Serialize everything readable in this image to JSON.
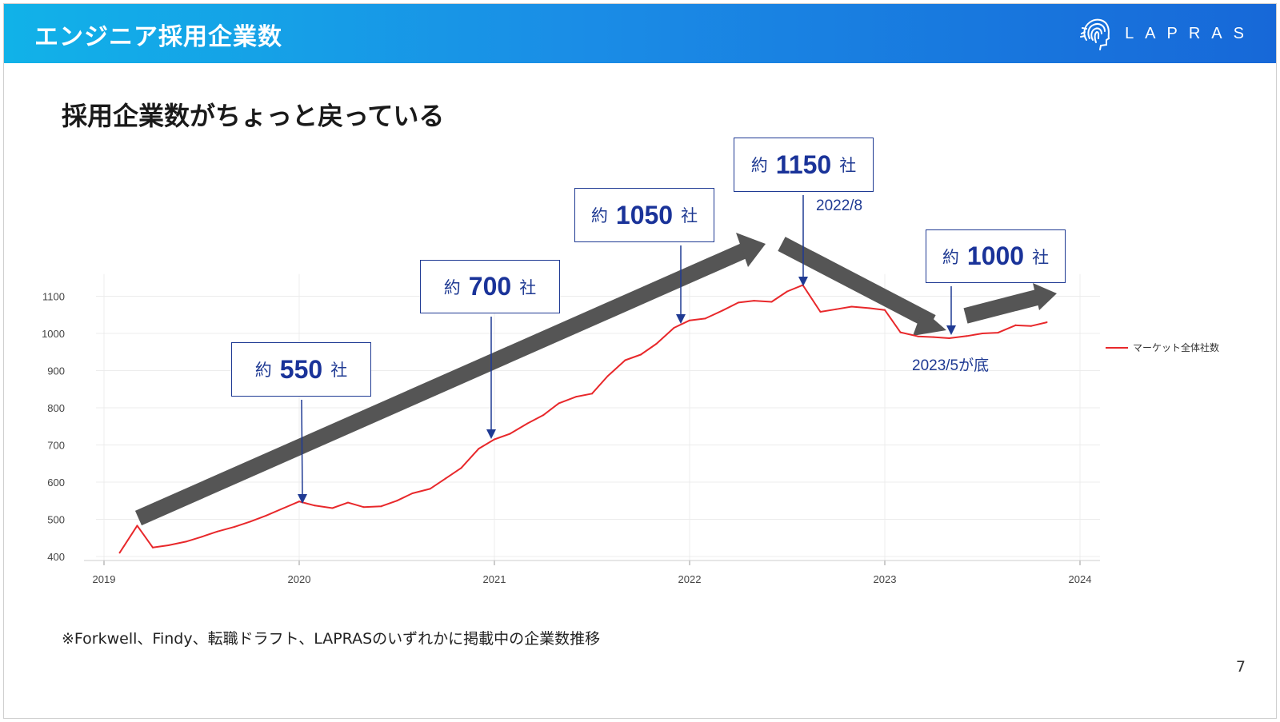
{
  "header": {
    "title": "エンジニア採用企業数",
    "logo_text": "LAPRAS"
  },
  "page_title": "採用企業数がちょっと戻っている",
  "footnote": "※Forkwell、Findy、転職ドラフト、LAPRASのいずれかに掲載中の企業数推移",
  "page_number": "7",
  "callouts": [
    {
      "prefix": "約",
      "value": "550",
      "suffix": "社"
    },
    {
      "prefix": "約",
      "value": "700",
      "suffix": "社"
    },
    {
      "prefix": "約",
      "value": "1050",
      "suffix": "社"
    },
    {
      "prefix": "約",
      "value": "1150",
      "suffix": "社"
    },
    {
      "prefix": "約",
      "value": "1000",
      "suffix": "社"
    }
  ],
  "annotations": {
    "peak": "2022/8",
    "bottom": "2023/5が底"
  },
  "colors": {
    "line": "#e8282b",
    "callout": "#1f3a93",
    "trend_arrow": "#555555",
    "header_start": "#11b2e8",
    "header_end": "#1768d8"
  },
  "chart_data": {
    "type": "line",
    "x_ticks": [
      "2019",
      "2020",
      "2021",
      "2022",
      "2023",
      "2024"
    ],
    "y_ticks": [
      400,
      500,
      600,
      700,
      800,
      900,
      1000,
      1100
    ],
    "ylim": [
      385,
      1160
    ],
    "xlim": [
      2019.0,
      2024.0
    ],
    "grid": true,
    "legend_position": "right",
    "series": [
      {
        "name": "マーケット全体社数",
        "x": [
          2019.08,
          2019.17,
          2019.25,
          2019.33,
          2019.42,
          2019.5,
          2019.58,
          2019.67,
          2019.75,
          2019.83,
          2019.92,
          2020.0,
          2020.08,
          2020.17,
          2020.25,
          2020.33,
          2020.42,
          2020.5,
          2020.58,
          2020.67,
          2020.75,
          2020.83,
          2020.92,
          2021.0,
          2021.08,
          2021.17,
          2021.25,
          2021.33,
          2021.42,
          2021.5,
          2021.58,
          2021.67,
          2021.75,
          2021.83,
          2021.92,
          2022.0,
          2022.08,
          2022.17,
          2022.25,
          2022.33,
          2022.42,
          2022.5,
          2022.58,
          2022.67,
          2022.75,
          2022.83,
          2022.92,
          2023.0,
          2023.08,
          2023.17,
          2023.25,
          2023.33,
          2023.42,
          2023.5,
          2023.58,
          2023.67,
          2023.75,
          2023.83
        ],
        "values": [
          410,
          483,
          424,
          430,
          440,
          453,
          467,
          480,
          494,
          510,
          530,
          548,
          537,
          530,
          545,
          533,
          535,
          550,
          570,
          582,
          610,
          638,
          690,
          715,
          730,
          758,
          780,
          812,
          830,
          838,
          885,
          928,
          943,
          972,
          1015,
          1035,
          1040,
          1062,
          1083,
          1088,
          1085,
          1113,
          1130,
          1058,
          1065,
          1072,
          1068,
          1063,
          1003,
          992,
          990,
          987,
          993,
          1000,
          1002,
          1022,
          1020,
          1030
        ]
      }
    ]
  }
}
